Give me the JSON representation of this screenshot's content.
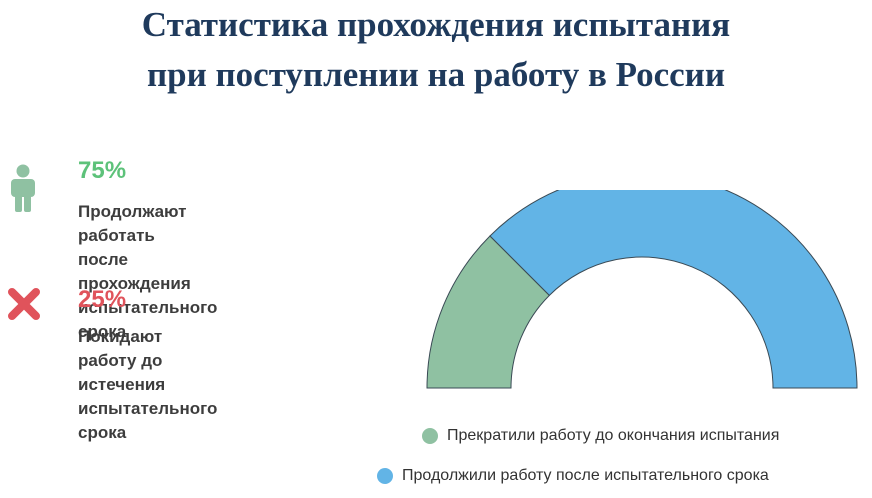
{
  "title": {
    "line1": "Статистика прохождения испытания",
    "line2": "при поступлении на работу в России"
  },
  "stats": [
    {
      "icon": "person-icon",
      "value": "75%",
      "description": "Продолжают работать\nпосле прохождения\nиспытательного срока",
      "color": "#5dc27a"
    },
    {
      "icon": "cross-icon",
      "value": "25%",
      "description": "Покидают работу до\nистечения испытательного\nсрока",
      "color": "#e0535b"
    }
  ],
  "chart_data": {
    "type": "pie",
    "variant": "semi-donut",
    "series": [
      {
        "name": "Прекратили работу до окончания испытания",
        "value": 25,
        "color": "#8fc1a2"
      },
      {
        "name": "Продолжили работу после испытательного срока",
        "value": 75,
        "color": "#62b4e6"
      }
    ],
    "legend": "bottom-right"
  }
}
